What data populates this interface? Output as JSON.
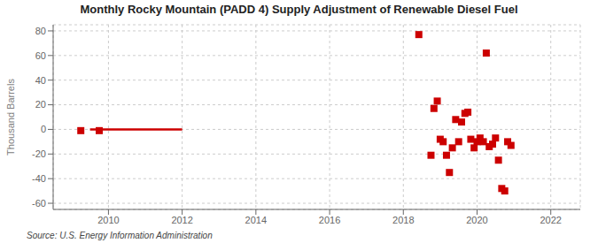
{
  "chart_data": {
    "type": "scatter",
    "title": "Monthly Rocky Mountain (PADD 4) Supply Adjustment of Renewable Diesel Fuel",
    "ylabel": "Thousand Barrels",
    "source": "Source: U.S. Energy Information Administration",
    "xlim": [
      2008.5,
      2022.8
    ],
    "ylim": [
      -65,
      85
    ],
    "xticks": [
      2010,
      2012,
      2014,
      2016,
      2018,
      2020,
      2022
    ],
    "yticks": [
      -60,
      -40,
      -20,
      0,
      20,
      40,
      60,
      80
    ],
    "grid": true,
    "series": [
      {
        "type": "line",
        "color": "#cc0000",
        "x": [
          2009.5,
          2012.0
        ],
        "values": [
          0,
          0
        ]
      },
      {
        "type": "scatter",
        "color": "#cc0000",
        "marker": "square",
        "x": [
          2009.25,
          2009.75,
          2018.42,
          2018.75,
          2018.83,
          2018.92,
          2019.0,
          2019.08,
          2019.17,
          2019.25,
          2019.33,
          2019.42,
          2019.5,
          2019.58,
          2019.67,
          2019.75,
          2019.83,
          2019.92,
          2020.0,
          2020.08,
          2020.17,
          2020.25,
          2020.33,
          2020.42,
          2020.5,
          2020.58,
          2020.67,
          2020.75,
          2020.83,
          2020.92
        ],
        "values": [
          -1,
          -1,
          77,
          -21,
          17,
          23,
          -8,
          -10,
          -21,
          -35,
          -15,
          8,
          -10,
          6,
          13,
          14,
          -8,
          -15,
          -10,
          -7,
          -10,
          62,
          -14,
          -12,
          -7,
          -25,
          -48,
          -50,
          -10,
          -13
        ]
      }
    ]
  }
}
